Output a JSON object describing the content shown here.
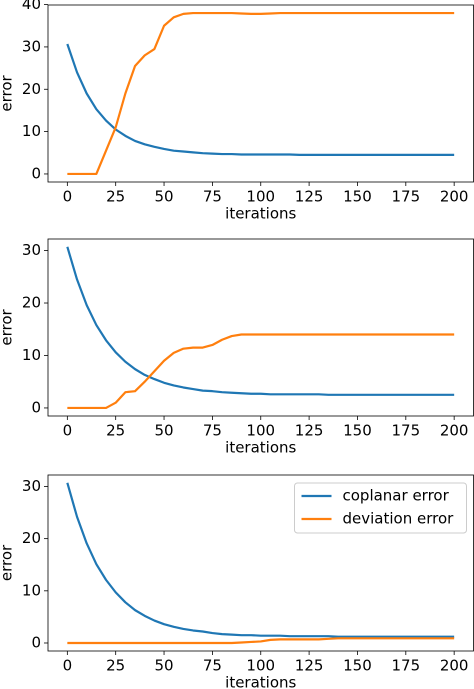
{
  "chart_data": [
    {
      "type": "line",
      "xlabel": "iterations",
      "ylabel": "error",
      "x": [
        0,
        5,
        10,
        15,
        20,
        25,
        30,
        35,
        40,
        45,
        50,
        55,
        60,
        65,
        70,
        75,
        80,
        85,
        90,
        95,
        100,
        105,
        110,
        115,
        120,
        125,
        130,
        135,
        140,
        145,
        150,
        155,
        160,
        165,
        170,
        175,
        180,
        185,
        190,
        195,
        200
      ],
      "series": [
        {
          "name": "coplanar error",
          "color": "#1f77b4",
          "values": [
            30.7,
            24.0,
            19.0,
            15.3,
            12.6,
            10.5,
            9.0,
            7.8,
            7.0,
            6.4,
            5.9,
            5.5,
            5.3,
            5.1,
            4.9,
            4.8,
            4.7,
            4.7,
            4.6,
            4.6,
            4.6,
            4.6,
            4.6,
            4.6,
            4.5,
            4.5,
            4.5,
            4.5,
            4.5,
            4.5,
            4.5,
            4.5,
            4.5,
            4.5,
            4.5,
            4.5,
            4.5,
            4.5,
            4.5,
            4.5,
            4.5
          ]
        },
        {
          "name": "deviation error",
          "color": "#ff7f0e",
          "values": [
            0,
            0,
            0,
            0,
            5.5,
            11,
            19,
            25.5,
            28,
            29.5,
            35,
            37,
            37.8,
            38,
            38,
            38,
            38,
            38,
            37.9,
            37.8,
            37.8,
            37.9,
            38,
            38,
            38,
            38,
            38,
            38,
            38,
            38,
            38,
            38,
            38,
            38,
            38,
            38,
            38,
            38,
            38,
            38,
            38
          ]
        }
      ],
      "xlim": [
        -10,
        210
      ],
      "ylim": [
        -1.9,
        39.9
      ],
      "xticks": [
        0,
        25,
        50,
        75,
        100,
        125,
        150,
        175,
        200
      ],
      "yticks": [
        0,
        10,
        20,
        30,
        40
      ]
    },
    {
      "type": "line",
      "xlabel": "iterations",
      "ylabel": "error",
      "x": [
        0,
        5,
        10,
        15,
        20,
        25,
        30,
        35,
        40,
        45,
        50,
        55,
        60,
        65,
        70,
        75,
        80,
        85,
        90,
        95,
        100,
        105,
        110,
        115,
        120,
        125,
        130,
        135,
        140,
        145,
        150,
        155,
        160,
        165,
        170,
        175,
        180,
        185,
        190,
        195,
        200
      ],
      "series": [
        {
          "name": "coplanar error",
          "color": "#1f77b4",
          "values": [
            30.7,
            24.5,
            19.6,
            15.8,
            12.9,
            10.6,
            8.8,
            7.4,
            6.3,
            5.5,
            4.8,
            4.3,
            3.9,
            3.6,
            3.3,
            3.2,
            3.0,
            2.9,
            2.8,
            2.7,
            2.7,
            2.6,
            2.6,
            2.6,
            2.6,
            2.6,
            2.6,
            2.5,
            2.5,
            2.5,
            2.5,
            2.5,
            2.5,
            2.5,
            2.5,
            2.5,
            2.5,
            2.5,
            2.5,
            2.5,
            2.5
          ]
        },
        {
          "name": "deviation error",
          "color": "#ff7f0e",
          "values": [
            0,
            0,
            0,
            0,
            0,
            1,
            3,
            3.2,
            5,
            7,
            9,
            10.5,
            11.3,
            11.5,
            11.5,
            12,
            13,
            13.7,
            14,
            14,
            14,
            14,
            14,
            14,
            14,
            14,
            14,
            14,
            14,
            14,
            14,
            14,
            14,
            14,
            14,
            14,
            14,
            14,
            14,
            14,
            14
          ]
        }
      ],
      "xlim": [
        -10,
        210
      ],
      "ylim": [
        -1.535,
        32.2
      ],
      "xticks": [
        0,
        25,
        50,
        75,
        100,
        125,
        150,
        175,
        200
      ],
      "yticks": [
        0,
        10,
        20,
        30
      ]
    },
    {
      "type": "line",
      "xlabel": "iterations",
      "ylabel": "error",
      "legend": "upper right",
      "x": [
        0,
        5,
        10,
        15,
        20,
        25,
        30,
        35,
        40,
        45,
        50,
        55,
        60,
        65,
        70,
        75,
        80,
        85,
        90,
        95,
        100,
        105,
        110,
        115,
        120,
        125,
        130,
        135,
        140,
        145,
        150,
        155,
        160,
        165,
        170,
        175,
        180,
        185,
        190,
        195,
        200
      ],
      "series": [
        {
          "name": "coplanar error",
          "color": "#1f77b4",
          "values": [
            30.7,
            24.2,
            19.1,
            15.1,
            12.1,
            9.7,
            7.8,
            6.3,
            5.2,
            4.3,
            3.6,
            3.1,
            2.7,
            2.4,
            2.2,
            1.9,
            1.7,
            1.6,
            1.5,
            1.5,
            1.4,
            1.4,
            1.4,
            1.3,
            1.3,
            1.3,
            1.3,
            1.3,
            1.2,
            1.2,
            1.2,
            1.2,
            1.2,
            1.2,
            1.2,
            1.2,
            1.2,
            1.2,
            1.2,
            1.2,
            1.2
          ]
        },
        {
          "name": "deviation error",
          "color": "#ff7f0e",
          "values": [
            0,
            0,
            0,
            0,
            0,
            0,
            0,
            0,
            0,
            0,
            0,
            0,
            0,
            0,
            0,
            0,
            0,
            0,
            0.1,
            0.2,
            0.3,
            0.6,
            0.7,
            0.7,
            0.7,
            0.7,
            0.7,
            0.8,
            0.9,
            0.9,
            0.9,
            0.9,
            0.9,
            0.9,
            0.9,
            0.9,
            0.9,
            0.9,
            0.9,
            0.9,
            0.9
          ]
        }
      ],
      "xlim": [
        -10,
        210
      ],
      "ylim": [
        -1.535,
        32.2
      ],
      "xticks": [
        0,
        25,
        50,
        75,
        100,
        125,
        150,
        175,
        200
      ],
      "yticks": [
        0,
        10,
        20,
        30
      ]
    }
  ]
}
